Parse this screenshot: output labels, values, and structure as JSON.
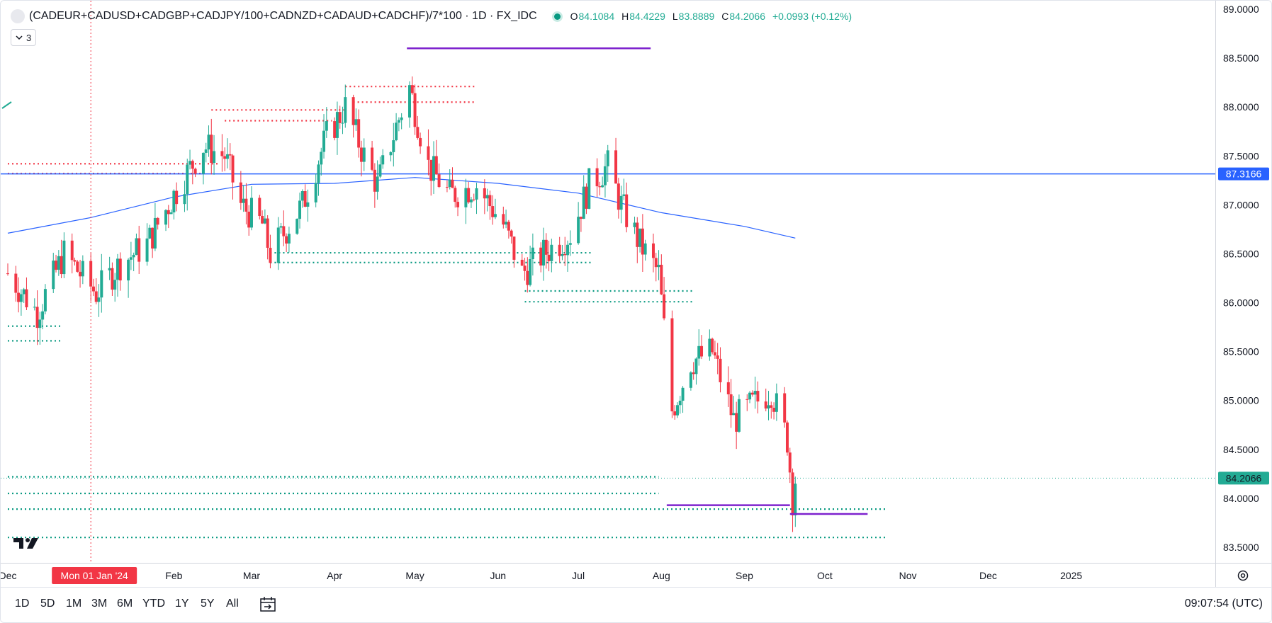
{
  "header": {
    "symbol": "(CADEUR+CADUSD+CADGBP+CADJPY/100+CADNZD+CADAUD+CADCHF)/7*100 · 1D · FX_IDC",
    "ohlc": {
      "o_label": "O",
      "o_value": "84.1084",
      "h_label": "H",
      "h_value": "84.4229",
      "l_label": "L",
      "l_value": "83.8889",
      "c_label": "C",
      "c_value": "84.2066",
      "change": "+0.0993 (+0.12%)"
    },
    "indicators_count": "3"
  },
  "colors": {
    "up": "#22ab94",
    "down": "#f23645",
    "ma": "#2962ff",
    "hline": "#2962ff",
    "purple": "#7e22ce",
    "res": "#f23645",
    "sup": "#089981",
    "crosshair": "#f23645"
  },
  "price_axis": {
    "ticks": [
      "89.0000",
      "88.5000",
      "88.0000",
      "87.5000",
      "87.0000",
      "86.5000",
      "86.0000",
      "85.5000",
      "85.0000",
      "84.5000",
      "84.0000",
      "83.5000"
    ],
    "hline_label": "87.3166",
    "last_label": "84.2066"
  },
  "time_axis": {
    "labels": [
      "Dec",
      "Feb",
      "Mar",
      "Apr",
      "May",
      "Jun",
      "Jul",
      "Aug",
      "Sep",
      "Oct",
      "Nov",
      "Dec",
      "2025"
    ],
    "crosshair_label": "Mon 01 Jan '24"
  },
  "timeframes": [
    "1D",
    "5D",
    "1M",
    "3M",
    "6M",
    "YTD",
    "1Y",
    "5Y",
    "All"
  ],
  "clock": "09:07:54 (UTC)",
  "chart_data": {
    "type": "candlestick",
    "title": "(CADEUR+CADUSD+CADGBP+CADJPY/100+CADNZD+CADAUD+CADCHF)/7*100 · 1D · FX_IDC",
    "ylim": [
      83.5,
      89.0
    ],
    "x_range": [
      "2023-12-01",
      "2025-01-01"
    ],
    "hline": 87.3166,
    "last_price": 84.2066,
    "waypoints": [
      [
        "2023-12-01",
        86.3
      ],
      [
        "2023-12-12",
        85.9
      ],
      [
        "2023-12-22",
        86.5
      ],
      [
        "2024-01-03",
        86.1
      ],
      [
        "2024-01-12",
        86.4
      ],
      [
        "2024-01-22",
        86.6
      ],
      [
        "2024-02-01",
        87.1
      ],
      [
        "2024-02-12",
        87.6
      ],
      [
        "2024-02-20",
        87.5
      ],
      [
        "2024-02-26",
        87.0
      ],
      [
        "2024-03-05",
        86.8
      ],
      [
        "2024-03-08",
        86.5
      ],
      [
        "2024-03-20",
        87.0
      ],
      [
        "2024-03-29",
        87.7
      ],
      [
        "2024-04-05",
        88.0
      ],
      [
        "2024-04-12",
        87.5
      ],
      [
        "2024-04-17",
        87.2
      ],
      [
        "2024-04-24",
        87.8
      ],
      [
        "2024-04-29",
        88.2
      ],
      [
        "2024-05-06",
        87.4
      ],
      [
        "2024-05-14",
        87.1
      ],
      [
        "2024-05-24",
        87.2
      ],
      [
        "2024-06-03",
        86.8
      ],
      [
        "2024-06-10",
        86.3
      ],
      [
        "2024-06-18",
        86.5
      ],
      [
        "2024-06-28",
        86.7
      ],
      [
        "2024-07-05",
        87.2
      ],
      [
        "2024-07-12",
        87.4
      ],
      [
        "2024-07-17",
        87.0
      ],
      [
        "2024-07-24",
        86.6
      ],
      [
        "2024-07-31",
        86.3
      ],
      [
        "2024-08-05",
        84.9
      ],
      [
        "2024-08-12",
        85.4
      ],
      [
        "2024-08-20",
        85.5
      ],
      [
        "2024-08-28",
        84.8
      ],
      [
        "2024-09-06",
        85.0
      ],
      [
        "2024-09-11",
        85.1
      ],
      [
        "2024-09-17",
        84.6
      ],
      [
        "2024-09-19",
        84.0
      ],
      [
        "2024-09-20",
        84.2
      ]
    ],
    "moving_average": [
      [
        "2023-12-01",
        86.71
      ],
      [
        "2024-01-01",
        86.87
      ],
      [
        "2024-02-01",
        87.08
      ],
      [
        "2024-03-01",
        87.21
      ],
      [
        "2024-04-01",
        87.22
      ],
      [
        "2024-05-01",
        87.28
      ],
      [
        "2024-06-01",
        87.22
      ],
      [
        "2024-07-01",
        87.12
      ],
      [
        "2024-08-01",
        86.92
      ],
      [
        "2024-09-01",
        86.78
      ],
      [
        "2024-09-20",
        86.66
      ]
    ],
    "levels": [
      {
        "kind": "resistance",
        "price": 87.42,
        "x0": "2023-12-01",
        "x1": "2024-02-18"
      },
      {
        "kind": "resistance",
        "price": 87.32,
        "x0": "2023-12-01",
        "x1": "2024-02-12"
      },
      {
        "kind": "resistance",
        "price": 87.97,
        "x0": "2024-02-15",
        "x1": "2024-04-05"
      },
      {
        "kind": "resistance",
        "price": 87.86,
        "x0": "2024-02-20",
        "x1": "2024-03-31"
      },
      {
        "kind": "resistance",
        "price": 88.21,
        "x0": "2024-04-05",
        "x1": "2024-05-24"
      },
      {
        "kind": "resistance",
        "price": 88.05,
        "x0": "2024-04-08",
        "x1": "2024-05-24"
      },
      {
        "kind": "support",
        "price": 86.51,
        "x0": "2024-03-08",
        "x1": "2024-07-06"
      },
      {
        "kind": "support",
        "price": 86.41,
        "x0": "2024-03-08",
        "x1": "2024-07-06"
      },
      {
        "kind": "support",
        "price": 86.12,
        "x0": "2024-06-11",
        "x1": "2024-08-13"
      },
      {
        "kind": "support",
        "price": 86.01,
        "x0": "2024-06-11",
        "x1": "2024-08-13"
      },
      {
        "kind": "support",
        "price": 85.76,
        "x0": "2023-12-01",
        "x1": "2023-12-21"
      },
      {
        "kind": "support",
        "price": 85.61,
        "x0": "2023-12-01",
        "x1": "2023-12-21"
      },
      {
        "kind": "support",
        "price": 84.22,
        "x0": "2023-12-01",
        "x1": "2024-07-31"
      },
      {
        "kind": "support",
        "price": 84.05,
        "x0": "2023-12-01",
        "x1": "2024-07-31"
      },
      {
        "kind": "support",
        "price": 83.89,
        "x0": "2023-12-01",
        "x1": "2024-10-24"
      },
      {
        "kind": "support",
        "price": 83.6,
        "x0": "2023-12-01",
        "x1": "2024-10-24"
      }
    ],
    "purple_lines": [
      {
        "price": 88.6,
        "x0": "2024-04-28",
        "x1": "2024-07-28"
      },
      {
        "price": 83.93,
        "x0": "2024-08-03",
        "x1": "2024-09-18"
      },
      {
        "price": 83.84,
        "x0": "2024-09-18",
        "x1": "2024-10-17"
      }
    ],
    "crosshair_date": "2024-01-01"
  }
}
